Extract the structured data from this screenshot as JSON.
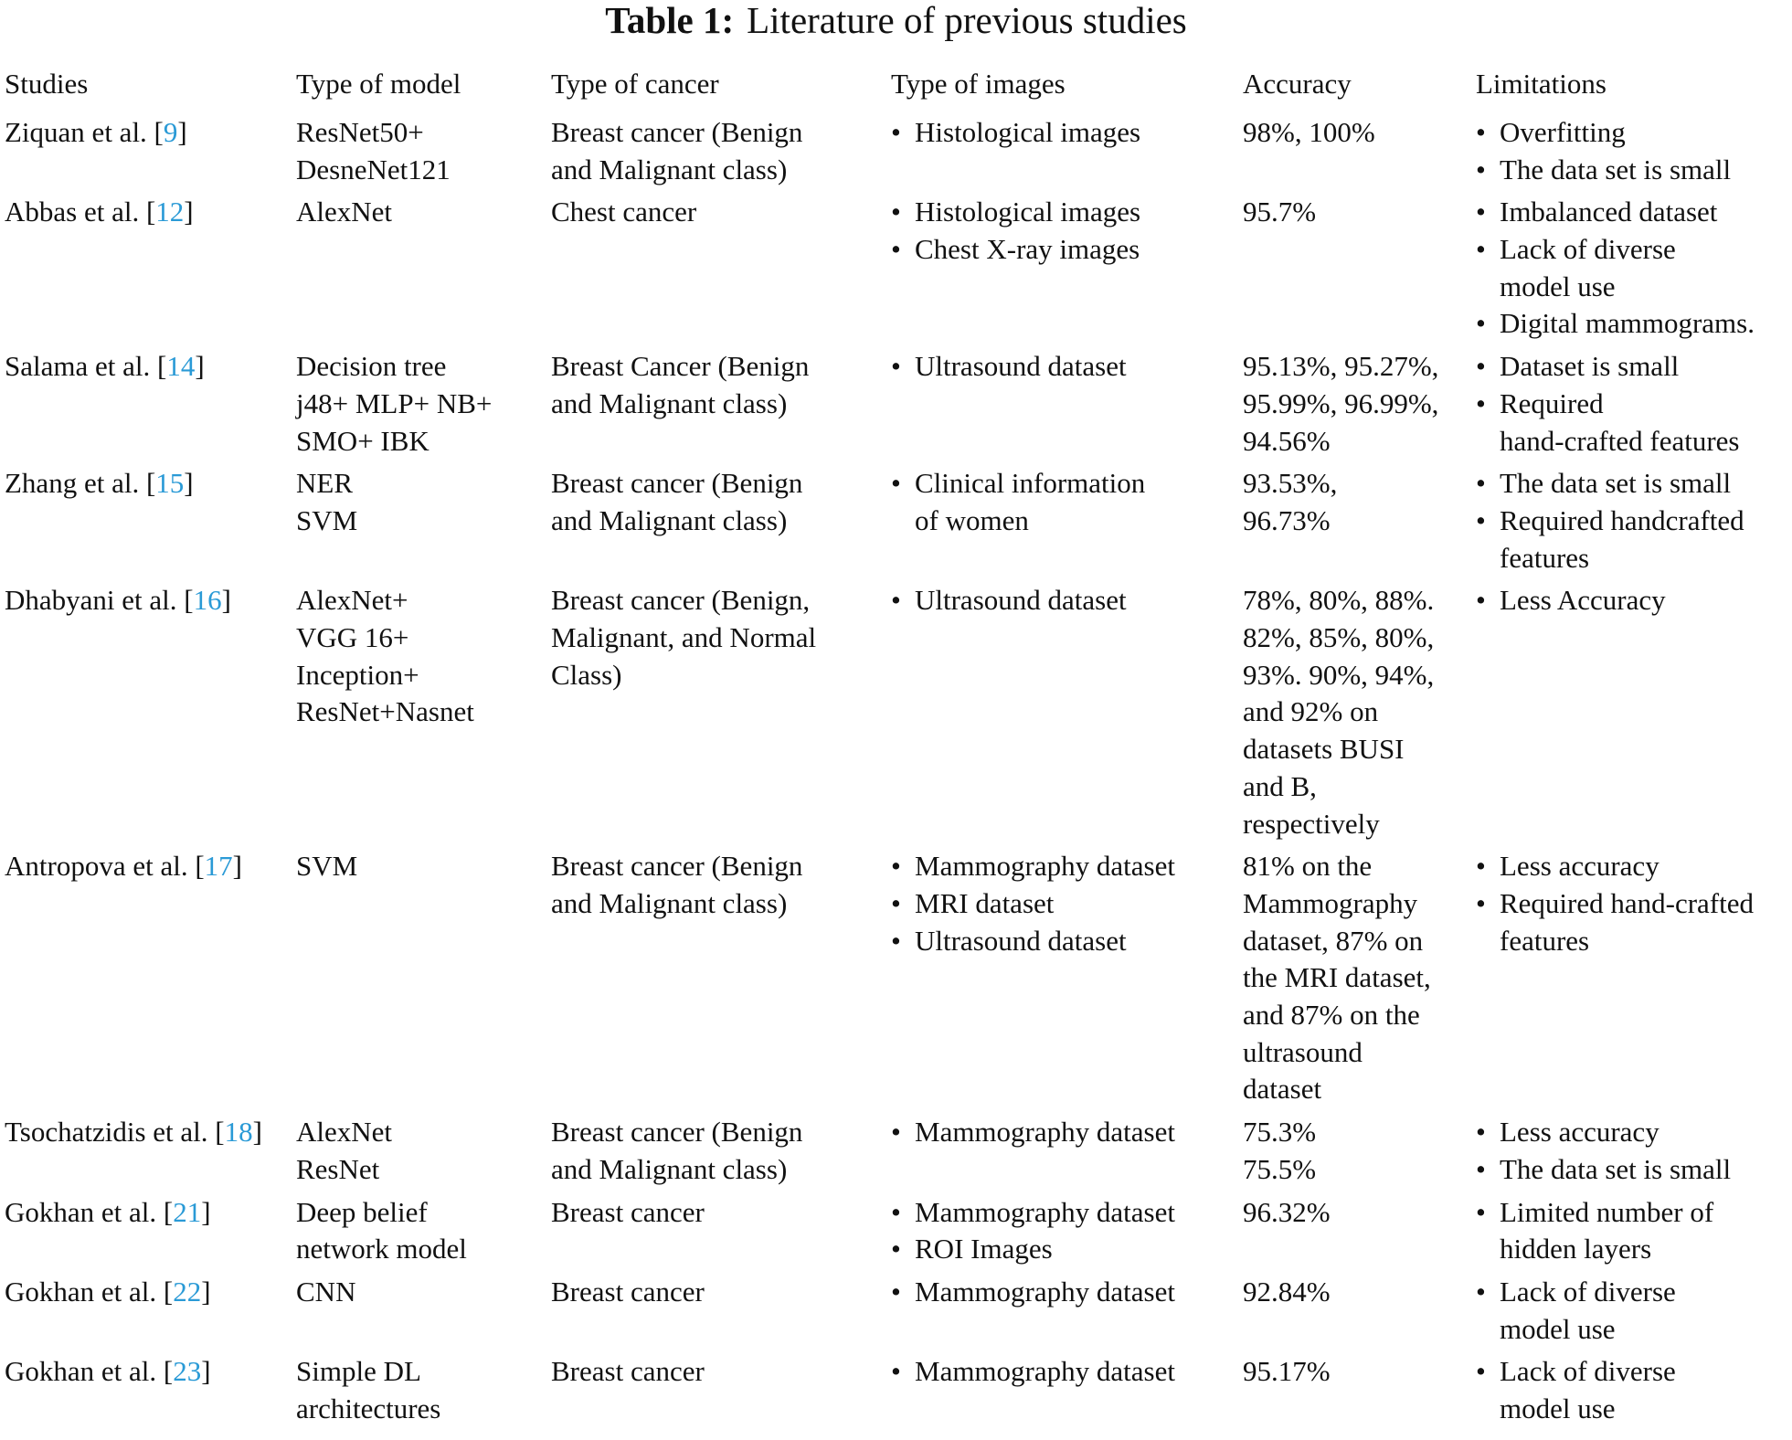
{
  "title": {
    "label": "Table 1:",
    "text": "Literature of previous studies"
  },
  "table": {
    "header": [
      "Studies",
      "Type of model",
      "Type of cancer",
      "Type of images",
      "Accuracy",
      "Limitations"
    ],
    "rows": [
      {
        "study": [
          "Ziquan et al. [",
          "9",
          "]"
        ],
        "model": [
          "ResNet50+",
          "DesneNet121"
        ],
        "cancer": [
          "Breast cancer (Benign",
          "and Malignant class)"
        ],
        "images": [
          [
            "Histological images"
          ]
        ],
        "accuracy": [
          "98%, 100%"
        ],
        "limitations": [
          [
            "Overfitting"
          ],
          [
            "The data set is small"
          ]
        ]
      },
      {
        "study": [
          "Abbas et al. [",
          "12",
          "]"
        ],
        "model": [
          "AlexNet"
        ],
        "cancer": [
          "Chest cancer"
        ],
        "images": [
          [
            "Histological images"
          ],
          [
            "Chest X-ray images"
          ]
        ],
        "accuracy": [
          "95.7%"
        ],
        "limitations": [
          [
            "Imbalanced dataset"
          ],
          [
            "Lack of diverse",
            "model use"
          ],
          [
            "Digital mammograms."
          ]
        ]
      },
      {
        "study": [
          "Salama et al. [",
          "14",
          "]"
        ],
        "model": [
          "Decision tree",
          "j48+ MLP+ NB+",
          "SMO+ IBK"
        ],
        "cancer": [
          "Breast Cancer (Benign",
          "and Malignant class)"
        ],
        "images": [
          [
            "Ultrasound dataset"
          ]
        ],
        "accuracy": [
          "95.13%, 95.27%,",
          "95.99%, 96.99%,",
          "94.56%"
        ],
        "limitations": [
          [
            "Dataset is small"
          ],
          [
            "Required",
            "hand-crafted features"
          ]
        ]
      },
      {
        "study": [
          "Zhang et al. [",
          "15",
          "]"
        ],
        "model": [
          "NER",
          "SVM"
        ],
        "cancer": [
          "Breast cancer (Benign",
          "and Malignant class)"
        ],
        "images": [
          [
            "Clinical information",
            "of women"
          ]
        ],
        "accuracy": [
          "93.53%,",
          "96.73%"
        ],
        "limitations": [
          [
            "The data set is small"
          ],
          [
            "Required handcrafted",
            "features"
          ]
        ]
      },
      {
        "study": [
          "Dhabyani et al. [",
          "16",
          "]"
        ],
        "model": [
          "AlexNet+",
          "VGG 16+",
          "Inception+",
          "ResNet+Nasnet"
        ],
        "cancer": [
          "Breast cancer (Benign,",
          "Malignant, and Normal",
          "Class)"
        ],
        "images": [
          [
            "Ultrasound dataset"
          ]
        ],
        "accuracy": [
          "78%, 80%, 88%.",
          "82%, 85%, 80%,",
          "93%. 90%, 94%,",
          "and 92% on",
          "datasets BUSI",
          "and B,",
          "respectively"
        ],
        "limitations": [
          [
            "Less Accuracy"
          ]
        ]
      },
      {
        "study": [
          "Antropova et al. [",
          "17",
          "]"
        ],
        "model": [
          "SVM"
        ],
        "cancer": [
          "Breast cancer (Benign",
          "and Malignant class)"
        ],
        "images": [
          [
            "Mammography dataset"
          ],
          [
            "MRI dataset"
          ],
          [
            "Ultrasound dataset"
          ]
        ],
        "accuracy": [
          "81% on the",
          "Mammography",
          "dataset, 87% on",
          "the MRI dataset,",
          "and 87% on the",
          "ultrasound",
          "dataset"
        ],
        "limitations": [
          [
            "Less accuracy"
          ],
          [
            "Required hand-crafted",
            "features"
          ]
        ]
      },
      {
        "study": [
          "Tsochatzidis et al. [",
          "18",
          "]"
        ],
        "model": [
          "AlexNet",
          "ResNet"
        ],
        "cancer": [
          "Breast cancer (Benign",
          "and Malignant class)"
        ],
        "images": [
          [
            "Mammography dataset"
          ]
        ],
        "accuracy": [
          "75.3%",
          "75.5%"
        ],
        "limitations": [
          [
            "Less accuracy"
          ],
          [
            "The data set is small"
          ]
        ]
      },
      {
        "study": [
          "Gokhan et al. [",
          "21",
          "]"
        ],
        "model": [
          "Deep belief",
          "network model"
        ],
        "cancer": [
          "Breast cancer"
        ],
        "images": [
          [
            "Mammography dataset"
          ],
          [
            "ROI Images"
          ]
        ],
        "accuracy": [
          "96.32%"
        ],
        "limitations": [
          [
            "Limited number of",
            "hidden layers"
          ]
        ]
      },
      {
        "study": [
          "Gokhan et al. [",
          "22",
          "]"
        ],
        "model": [
          "CNN"
        ],
        "cancer": [
          "Breast cancer"
        ],
        "images": [
          [
            "Mammography dataset"
          ]
        ],
        "accuracy": [
          "92.84%"
        ],
        "limitations": [
          [
            "Lack of diverse",
            "model use"
          ]
        ]
      },
      {
        "study": [
          "Gokhan et al. [",
          "23",
          "]"
        ],
        "model": [
          "Simple DL",
          "architectures"
        ],
        "cancer": [
          "Breast cancer"
        ],
        "images": [
          [
            "Mammography dataset"
          ]
        ],
        "accuracy": [
          "95.17%"
        ],
        "limitations": [
          [
            "Lack of diverse",
            "model use"
          ]
        ]
      }
    ]
  }
}
